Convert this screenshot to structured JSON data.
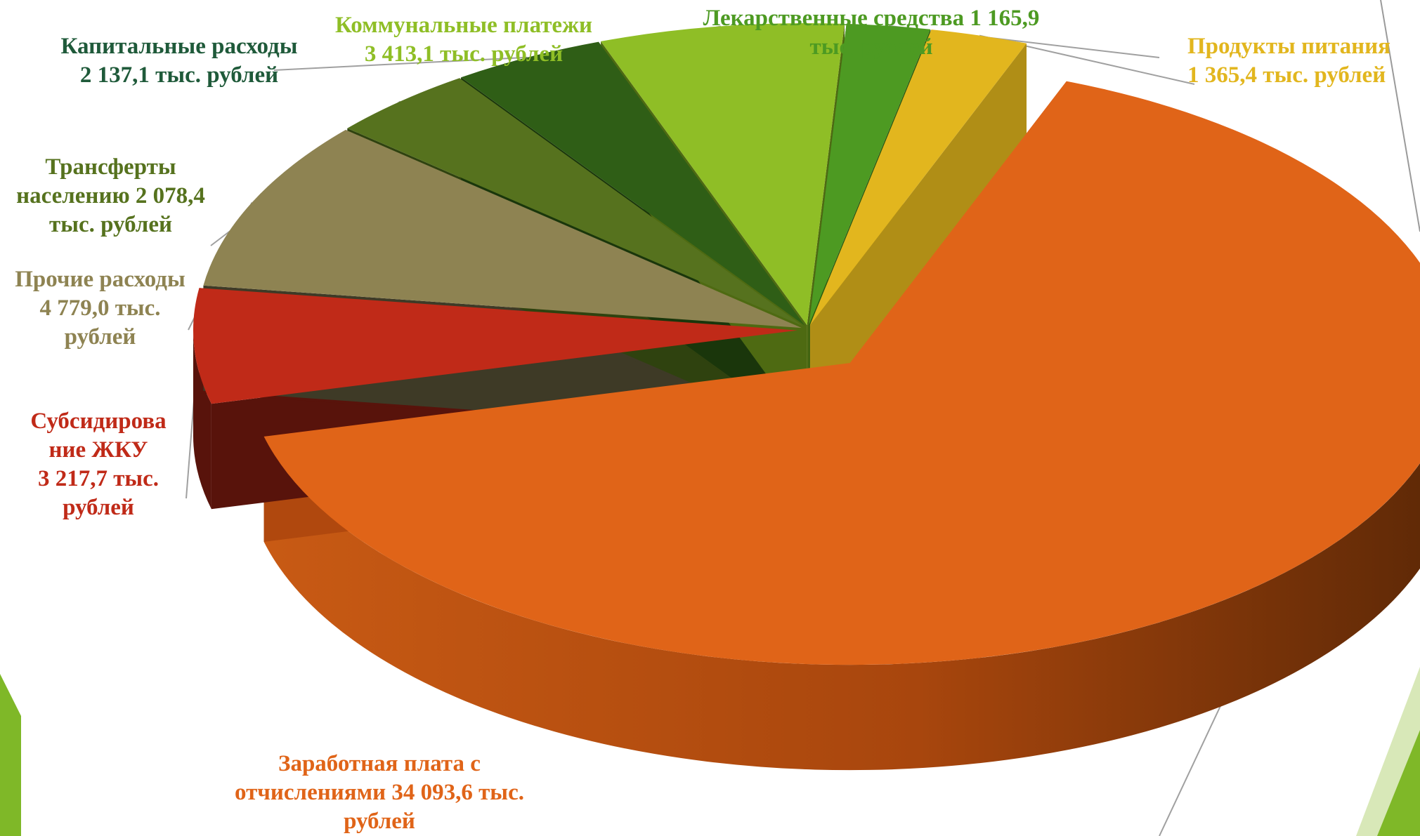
{
  "chart_data": {
    "type": "pie",
    "title": "",
    "style": "3d exploded pie",
    "slices": [
      {
        "key": "salary",
        "label_lines": [
          "Заработная плата с",
          "отчислениями 34 093,6 тыс.",
          "рублей"
        ],
        "value": 34093.6,
        "unit": "тыс. рублей",
        "color": "#e06418",
        "side_color": "#b0480e"
      },
      {
        "key": "zhku",
        "label_lines": [
          "Субсидирова",
          "ние ЖКУ",
          "3 217,7 тыс.",
          "рублей"
        ],
        "value": 3217.7,
        "unit": "тыс. рублей",
        "color": "#c02a18",
        "side_color": "#58130b"
      },
      {
        "key": "other",
        "label_lines": [
          "Прочие расходы",
          "4 779,0 тыс.",
          "рублей"
        ],
        "value": 4779.0,
        "unit": "тыс. рублей",
        "color": "#8e8352",
        "side_color": "#3e3a26"
      },
      {
        "key": "transfers",
        "label_lines": [
          "Трансферты",
          "населению 2 078,4",
          "тыс. рублей"
        ],
        "value": 2078.4,
        "unit": "тыс. рублей",
        "color": "#56721e",
        "side_color": "#2f420f"
      },
      {
        "key": "capital",
        "label_lines": [
          "Капитальные расходы",
          "2 137,1 тыс. рублей"
        ],
        "value": 2137.1,
        "unit": "тыс. рублей",
        "color": "#2f5e16",
        "side_color": "#1a360b"
      },
      {
        "key": "utilities",
        "label_lines": [
          "Коммунальные платежи",
          "3 413,1 тыс. рублей"
        ],
        "value": 3413.1,
        "unit": "тыс. рублей",
        "color": "#8fbe26",
        "side_color": "#4e6a12"
      },
      {
        "key": "medicine",
        "label_lines": [
          "Лекарственные средства 1 165,9",
          "тыс. рублей"
        ],
        "value": 1165.9,
        "unit": "тыс. рублей",
        "color": "#4d9a22",
        "side_color": "#2a5a10"
      },
      {
        "key": "food",
        "label_lines": [
          "Продукты питания",
          "1 365,4 тыс. рублей"
        ],
        "value": 1365.4,
        "unit": "тыс. рублей",
        "color": "#e2b61e",
        "side_color": "#b08e16"
      }
    ],
    "label_colors": {
      "salary": "#e06418",
      "zhku": "#c02a18",
      "other": "#8e8352",
      "transfers": "#56721e",
      "capital": "#1f5a3a",
      "utilities": "#8fbe26",
      "medicine": "#4d9a22",
      "food": "#e2b61e"
    },
    "legend": "none"
  }
}
